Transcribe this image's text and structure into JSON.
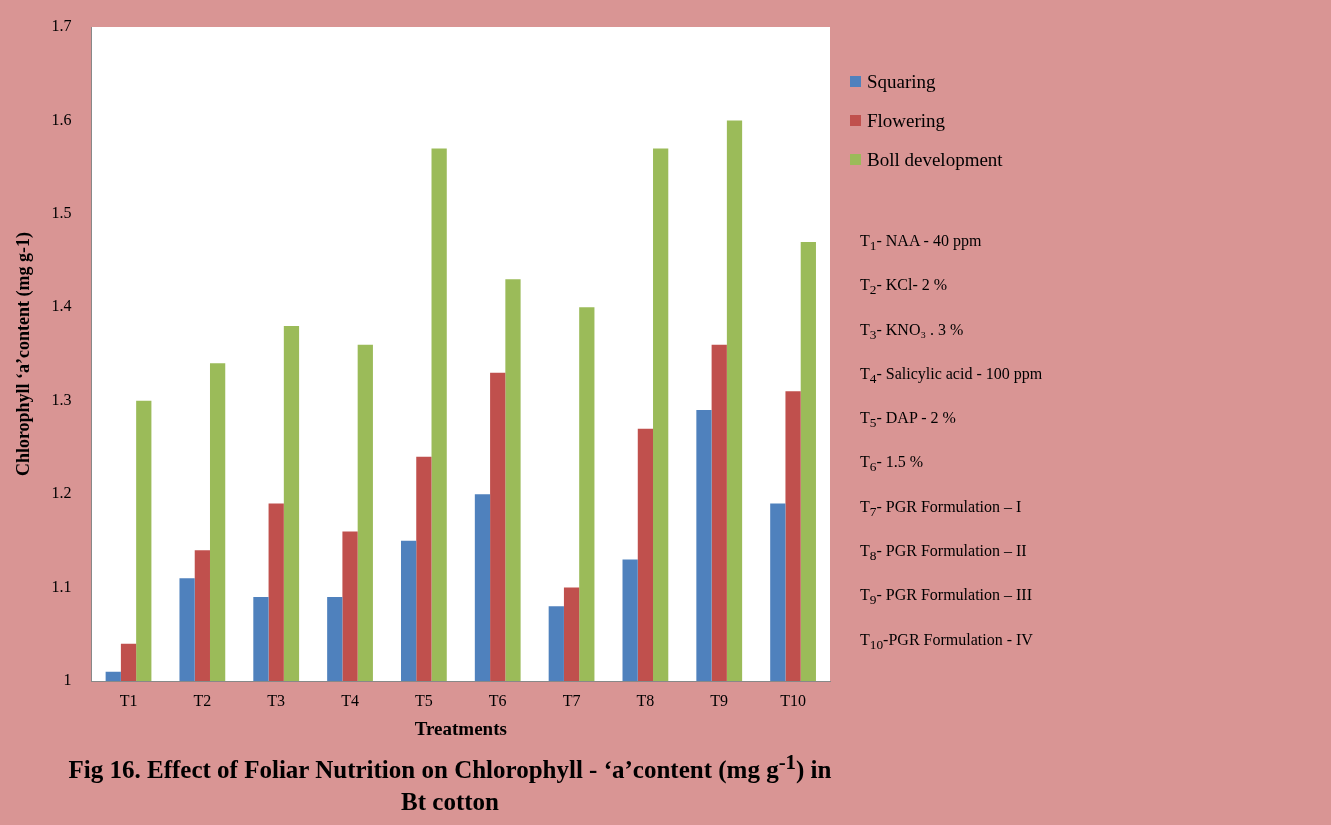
{
  "chart_data": {
    "type": "bar",
    "title": "Fig 16. Effect of Foliar Nutrition on Chlorophyll - ‘a’content (mg g$^{-1}$) in Bt cotton",
    "xlabel": "Treatments",
    "ylabel": "Chlorophyll ‘a’content (mg g-1)",
    "categories": [
      "T1",
      "T2",
      "T3",
      "T4",
      "T5",
      "T6",
      "T7",
      "T8",
      "T9",
      "T10"
    ],
    "series": [
      {
        "name": "Squaring",
        "color": "#4f81bd",
        "values": [
          1.01,
          1.11,
          1.09,
          1.09,
          1.15,
          1.2,
          1.08,
          1.13,
          1.29,
          1.19
        ]
      },
      {
        "name": "Flowering",
        "color": "#c0504d",
        "values": [
          1.04,
          1.14,
          1.19,
          1.16,
          1.24,
          1.33,
          1.1,
          1.27,
          1.36,
          1.31
        ]
      },
      {
        "name": "Boll development",
        "color": "#9bbb59",
        "values": [
          1.3,
          1.34,
          1.38,
          1.36,
          1.57,
          1.43,
          1.4,
          1.57,
          1.6,
          1.47
        ]
      }
    ],
    "ylim": [
      1,
      1.7
    ],
    "yticks": [
      1,
      1.1,
      1.2,
      1.3,
      1.4,
      1.5,
      1.6,
      1.7
    ],
    "grid": false,
    "legend": "right",
    "annotations": [
      "T$_{1}$- NAA - 40 ppm",
      "T$_{2}$- KCl-  2 %",
      "T$_{3}$- KNO₃ . 3 %",
      "T$_{4}$- Salicylic acid   - 100 ppm",
      "T$_{5}$- DAP - 2 %",
      "T$_{6}$- 1.5 %",
      "T$_{7}$- PGR Formulation – I",
      "T$_{8}$- PGR Formulation – II",
      "T$_{9}$- PGR Formulation – III",
      "T$_{10}$-PGR Formulation - IV"
    ]
  }
}
